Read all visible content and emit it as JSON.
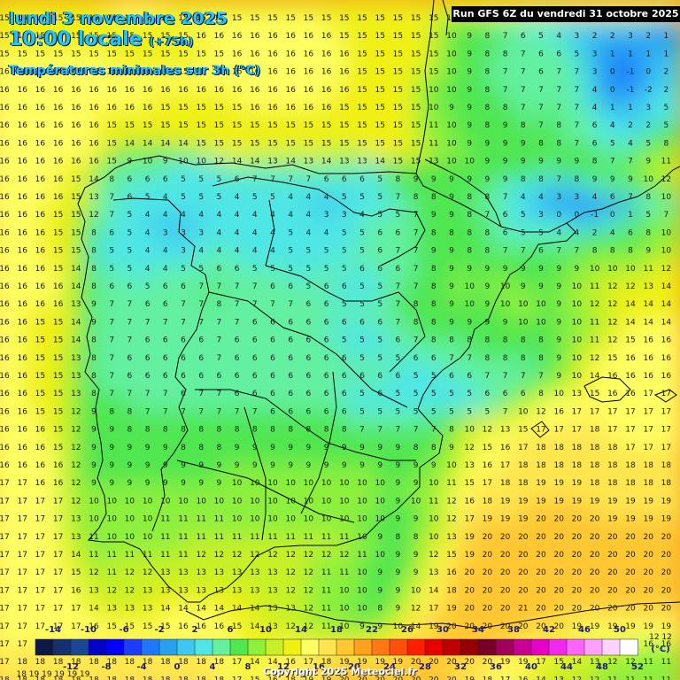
{
  "header": {
    "date_line": "lundi 3 novembre 2025",
    "time_line": "10:00 locale",
    "lead_time": "(+75h)",
    "parameter": "Températures minimales sur 3h (°C)",
    "run_info": "Run GFS 6Z du vendredi 31 octobre 2025"
  },
  "footer": {
    "copyright": "Copyright 2025 Meteociel.fr"
  },
  "legend": {
    "unit": "(°C)",
    "values": [
      -14,
      -12,
      -10,
      -8,
      -6,
      -4,
      -2,
      0,
      2,
      4,
      6,
      8,
      10,
      12,
      14,
      16,
      18,
      20,
      22,
      24,
      26,
      28,
      30,
      32,
      34,
      36,
      38,
      40,
      42,
      44,
      46,
      48,
      50,
      52
    ],
    "upper_labels": [
      "-14",
      "-10",
      "-6",
      "-2",
      "2",
      "6",
      "10",
      "14",
      "18",
      "22",
      "26",
      "30",
      "34",
      "38",
      "42",
      "46",
      "50"
    ],
    "lower_labels": [
      "-12",
      "-8",
      "-4",
      "0",
      "4",
      "8",
      "12",
      "16",
      "20",
      "24",
      "28",
      "32",
      "36",
      "40",
      "44",
      "48",
      "52"
    ],
    "colors": [
      "#0c1846",
      "#14306e",
      "#1a4696",
      "#0000c8",
      "#0000ff",
      "#1e3cff",
      "#1e78ff",
      "#28a0f0",
      "#3cc8f0",
      "#50e6e6",
      "#64f0a0",
      "#50e650",
      "#8cf03c",
      "#c8f028",
      "#f0f014",
      "#ffff64",
      "#ffe650",
      "#ffc832",
      "#ffa01e",
      "#ff7814",
      "#ff500a",
      "#ff1e00",
      "#e60000",
      "#be0000",
      "#960000",
      "#780028",
      "#a0005a",
      "#c80096",
      "#e600c8",
      "#f028f0",
      "#ff64ff",
      "#ffa0ff",
      "#ffd2ff",
      "#ffffff"
    ]
  },
  "grid_rows": [
    "15 15 15 15 15 15 15 16 16 16 15 15 15 15 15 15 15 15 15 15 15 15 15 15 15 15 15 15 15 15 15 15 15 15 15 15 15 15",
    "15 15 15 15 15 15 15 15 15 15 15 16 16 16 16 16 16 16 16 15 15 15 15 15 15 10 9 8 7 6 5 4 3 2 2 3 2 1",
    "15 15 15 15 15 15 15 15 15 15 15 15 15 16 16 16 16 16 16 16 15 15 15 15 15 10 9 8 8 7 6 6 5 3 1 1 1 1",
    "16 16 16 16 16 16 16 15 15 15 15 15 16 16 16 16 16 16 16 16 15 15 15 15 15 10 9 8 7 7 6 7 7 3 0 -1 0 2",
    "16 16 16 16 16 16 16 16 16 16 16 16 16 16 16 16 16 16 16 16 15 15 15 15 10 10 9 8 7 7 7 7 7 4 0 -1 -2 2",
    "16 16 16 16 16 16 16 16 16 15 15 15 15 15 16 16 16 16 16 15 15 15 15 15 10 9 9 8 8 7 7 7 7 4 1 1 3 5",
    "16 16 16 16 16 16 15 15 15 15 15 15 15 15 15 15 15 15 15 15 15 15 15 15 11 10 9 8 9 8 7 8 7 6 4 2 2 5",
    "16 16 16 16 16 16 15 14 14 14 14 15 15 15 15 15 15 15 15 15 15 15 15 15 11 10 9 9 9 9 8 8 7 6 5 4 5 8",
    "16 16 16 16 16 16 15 9 10 9 10 10 12 14 14 13 14 13 14 13 13 14 15 15 13 10 10 9 9 9 9 9 9 8 7 7 9 11",
    "16 16 16 16 15 14 8 6 6 6 5 5 5 6 7 7 7 7 6 6 6 5 8 9 9 9 9 9 9 8 8 7 8 9 9 9 10 12",
    "16 16 16 16 15 13 7 6 5 4 5 5 5 4 5 5 4 4 4 5 5 5 7 8 8 9 8 8 7 4 4 3 3 4 6 7 8 10",
    "16 16 16 15 15 12 7 5 4 4 4 4 4 4 4 4 4 4 3 3 4 5 5 7 9 9 8 7 6 5 3 0 0 -1 0 1 5 7",
    "16 16 16 15 15 8 6 5 4 3 3 3 4 4 4 4 5 4 4 5 5 6 6 7 8 8 8 8 6 5 5 4 4 2 4 6 8 10",
    "16 16 16 15 15 8 5 5 4 4 3 4 4 4 4 4 5 5 5 5 5 6 7 7 9 9 8 8 7 7 6 7 7 8 8 8 9 10",
    "16 16 16 15 14 8 5 5 4 4 5 5 6 6 5 5 5 5 5 5 6 6 6 7 8 9 9 9 9 9 9 9 9 10 10 10 11 12",
    "16 16 16 16 14 8 6 6 5 6 6 7 7 7 7 6 6 5 6 6 5 5 7 7 8 9 10 9 10 9 9 9 10 11 12 12 13 14",
    "16 16 16 16 13 9 7 7 6 6 7 7 8 7 7 7 7 6 6 5 5 5 7 8 8 9 10 9 10 10 10 9 10 12 12 14 14 14",
    "16 16 15 15 14 9 7 7 7 7 7 7 7 7 6 6 6 6 6 6 6 6 7 8 8 9 9 9 9 10 10 9 10 11 12 14 14 14",
    "16 16 15 15 14 8 7 7 6 6 6 6 7 6 6 6 6 6 6 5 5 5 6 7 8 8 8 8 8 8 8 9 10 11 12 15 16 16",
    "16 16 15 15 13 8 7 6 6 6 6 6 7 6 6 6 6 6 6 6 5 5 5 6 6 7 7 8 8 8 8 9 10 12 15 16 16 16",
    "16 16 15 15 13 8 7 6 6 6 6 6 6 6 6 6 6 6 6 6 6 6 6 5 5 6 6 7 7 7 7 9 10 14 16 16 16 16",
    "16 16 15 15 13 8 7 7 7 7 6 7 7 6 6 6 6 6 6 6 5 6 5 5 5 5 5 6 6 6 8 10 13 15 16 16 17 17",
    "16 16 15 15 12 9 8 8 7 7 7 7 7 7 7 6 6 6 6 6 5 5 5 5 5 5 5 5 7 10 12 16 17 17 17 17 17 17",
    "16 16 16 15 12 9 9 8 8 8 8 8 8 8 8 8 8 8 8 8 7 7 7 7 7 8 10 12 13 15 17 17 17 18 17 17 17 17",
    "16 16 16 15 12 9 9 9 9 9 8 8 8 9 9 9 9 9 9 9 9 9 9 8 8 9 12 15 16 17 18 18 18 18 18 17 17 17",
    "16 16 16 16 12 9 9 9 9 9 9 9 9 9 9 9 9 9 9 9 9 9 9 9 9 10 13 16 17 18 18 18 18 18 18 18 18 18",
    "17 17 16 16 12 9 9 9 9 9 9 9 9 10 10 10 10 10 10 10 10 10 9 9 10 11 15 17 18 18 19 19 19 18 18 18 18 18",
    "17 17 17 17 12 10 10 10 10 10 10 10 10 10 10 10 10 10 10 10 10 10 9 10 11 12 16 18 19 19 19 19 19 19 19 19 19 19",
    "17 17 17 17 13 10 10 10 10 11 11 11 11 10 10 10 10 10 10 10 10 10 9 9 10 12 17 19 19 19 20 20 20 20 19 19 19 19",
    "17 17 17 17 13 11 10 10 10 11 11 11 11 11 11 11 11 11 11 11 10 9 8 8 10 13 19 20 20 20 20 20 20 20 20 20 20 20",
    "17 17 17 17 14 11 11 11 11 11 11 12 12 12 12 12 12 12 12 12 11 10 9 9 12 15 19 20 20 20 20 20 20 20 20 20 20 20",
    "17 17 17 17 15 12 11 12 12 13 13 13 13 13 13 13 12 12 11 11 10 9 9 9 13 16 20 20 20 20 20 20 20 20 20 20 20 20",
    "17 17 17 17 16 13 12 12 13 13 13 13 13 13 13 13 12 12 11 10 10 9 9 10 14 18 20 20 20 20 20 20 20 20 20 20 20 20",
    "17 17 17 17 17 14 13 13 13 14 14 14 14 14 14 13 13 12 11 10 10 8 9 12 17 19 20 20 20 21 20 20 20 20 20 20 20 20",
    "17 17 17 17 17 16 15 15 15 15 16 16 16 15 14 13 12 12 11 10 9 9 10 14 19 20 20 20 20 20 20 20 19 19 19 19 19 19",
    "17 17 17 17 17 17 17 17 17 17 17 17 17 16 15 14 14 13 12 12 12 13 15 18 19 20 20 20 20 20 19 19 18 17 16 16 16 16",
    "17 18 18 18 18 18 18 18 18 18 18 18 18 17 14 14 16 17 18 19 19 19 19 20 20 20 20 20 19 19 17 15 14 13 12 12 11 11",
    "18 18 18 18 18 18 18 18 18 18 18 18 18 17 15 16 18 19 19 20 20 20 20 20 20 20 19 18 17 16 14 13 12 12 11 11 11 11"
  ],
  "legend_line_extra": "12 12",
  "bottom_row_extra": "18 19 19 19 19 19"
}
